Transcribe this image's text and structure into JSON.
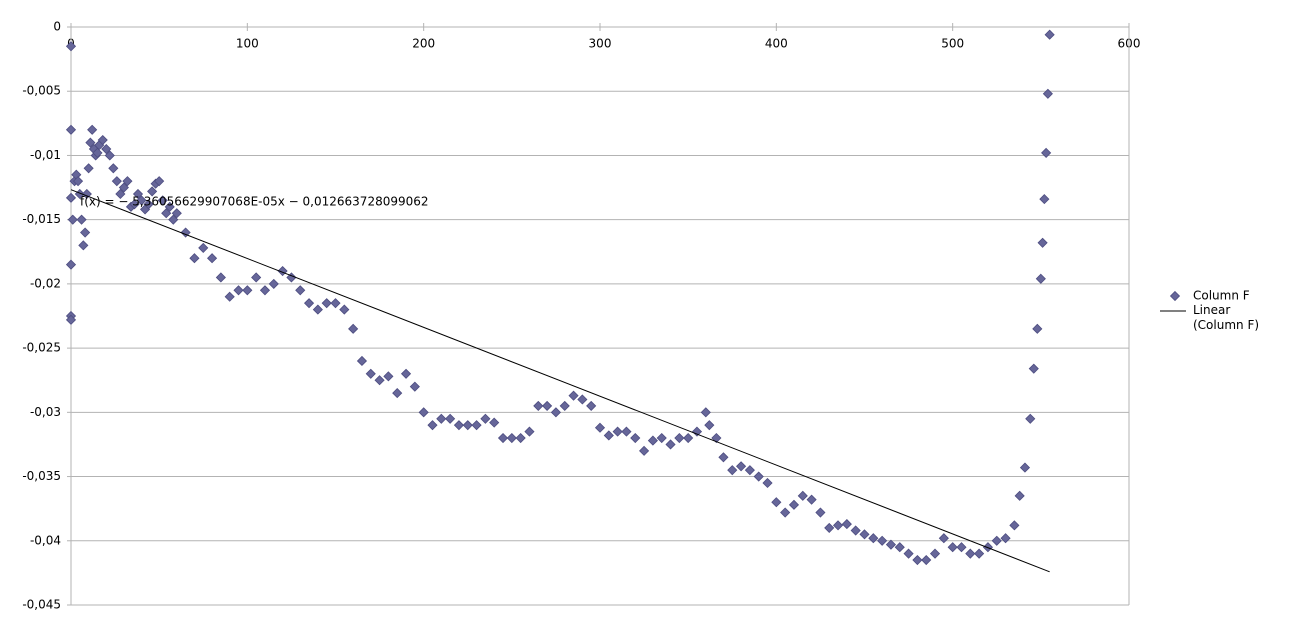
{
  "chart_data": {
    "type": "scatter",
    "annotation": "f(x) = − 5,36056629907068E-05x − 0,012663728099062",
    "series": [
      {
        "name": "Column F",
        "color": "#666699",
        "x": [
          0,
          0,
          0,
          0,
          0,
          0,
          1,
          2,
          3,
          4,
          5,
          6,
          7,
          8,
          9,
          10,
          11,
          12,
          13,
          14,
          15,
          16,
          18,
          20,
          22,
          24,
          26,
          28,
          30,
          32,
          34,
          36,
          38,
          40,
          42,
          44,
          46,
          48,
          50,
          52,
          54,
          56,
          58,
          60,
          65,
          70,
          75,
          80,
          85,
          90,
          95,
          100,
          105,
          110,
          115,
          120,
          125,
          130,
          135,
          140,
          145,
          150,
          155,
          160,
          165,
          170,
          175,
          180,
          185,
          190,
          195,
          200,
          205,
          210,
          215,
          220,
          225,
          230,
          235,
          240,
          245,
          250,
          255,
          260,
          265,
          270,
          275,
          280,
          285,
          290,
          295,
          300,
          305,
          310,
          315,
          320,
          325,
          330,
          335,
          340,
          345,
          350,
          355,
          360,
          362,
          366,
          370,
          375,
          380,
          385,
          390,
          395,
          400,
          405,
          410,
          415,
          420,
          425,
          430,
          435,
          440,
          445,
          450,
          455,
          460,
          465,
          470,
          475,
          480,
          485,
          490,
          495,
          500,
          505,
          510,
          515,
          520,
          525,
          530,
          535,
          538,
          541,
          544,
          546,
          548,
          550,
          551,
          552,
          553,
          554,
          555
        ],
        "values": [
          -0.0015,
          -0.008,
          -0.0133,
          -0.0185,
          -0.0225,
          -0.0228,
          -0.015,
          -0.012,
          -0.0115,
          -0.012,
          -0.013,
          -0.015,
          -0.017,
          -0.016,
          -0.013,
          -0.011,
          -0.009,
          -0.008,
          -0.0095,
          -0.01,
          -0.0098,
          -0.0092,
          -0.0088,
          -0.0095,
          -0.01,
          -0.011,
          -0.012,
          -0.013,
          -0.0125,
          -0.012,
          -0.014,
          -0.0138,
          -0.013,
          -0.0135,
          -0.0142,
          -0.0138,
          -0.0128,
          -0.0122,
          -0.012,
          -0.0135,
          -0.0145,
          -0.014,
          -0.015,
          -0.0145,
          -0.016,
          -0.018,
          -0.0172,
          -0.018,
          -0.0195,
          -0.021,
          -0.0205,
          -0.0205,
          -0.0195,
          -0.0205,
          -0.02,
          -0.019,
          -0.0195,
          -0.0205,
          -0.0215,
          -0.022,
          -0.0215,
          -0.0215,
          -0.022,
          -0.0235,
          -0.026,
          -0.027,
          -0.0275,
          -0.0272,
          -0.0285,
          -0.027,
          -0.028,
          -0.03,
          -0.031,
          -0.0305,
          -0.0305,
          -0.031,
          -0.031,
          -0.031,
          -0.0305,
          -0.0308,
          -0.032,
          -0.032,
          -0.032,
          -0.0315,
          -0.0295,
          -0.0295,
          -0.03,
          -0.0295,
          -0.0287,
          -0.029,
          -0.0295,
          -0.0312,
          -0.0318,
          -0.0315,
          -0.0315,
          -0.032,
          -0.033,
          -0.0322,
          -0.032,
          -0.0325,
          -0.032,
          -0.032,
          -0.0315,
          -0.03,
          -0.031,
          -0.032,
          -0.0335,
          -0.0345,
          -0.0342,
          -0.0345,
          -0.035,
          -0.0355,
          -0.037,
          -0.0378,
          -0.0372,
          -0.0365,
          -0.0368,
          -0.0378,
          -0.039,
          -0.0388,
          -0.0387,
          -0.0392,
          -0.0395,
          -0.0398,
          -0.04,
          -0.0403,
          -0.0405,
          -0.041,
          -0.0415,
          -0.0415,
          -0.041,
          -0.0398,
          -0.0405,
          -0.0405,
          -0.041,
          -0.041,
          -0.0405,
          -0.04,
          -0.0398,
          -0.0388,
          -0.0365,
          -0.0343,
          -0.0305,
          -0.0266,
          -0.0235,
          -0.0196,
          -0.0168,
          -0.0134,
          -0.0098,
          -0.0052,
          -0.0006
        ]
      },
      {
        "name": "Linear (Column F)",
        "color": "#000000",
        "type": "line",
        "x": [
          0,
          555
        ],
        "values": [
          -0.012664,
          -0.042415
        ]
      }
    ],
    "xlim": [
      0,
      600
    ],
    "xticks": [
      0,
      100,
      200,
      300,
      400,
      500,
      600
    ],
    "ylim": [
      -0.045,
      0
    ],
    "yticks": [
      0,
      {
        "value": -0.005,
        "label": "-0,005"
      },
      {
        "value": -0.01,
        "label": "-0,01"
      },
      {
        "value": -0.015,
        "label": "-0,015"
      },
      {
        "value": -0.02,
        "label": "-0,02"
      },
      {
        "value": -0.025,
        "label": "-0,025"
      },
      {
        "value": -0.03,
        "label": "-0,03"
      },
      {
        "value": -0.035,
        "label": "-0,035"
      },
      {
        "value": -0.04,
        "label": "-0,04"
      },
      {
        "value": -0.045,
        "label": "-0,045"
      }
    ],
    "grid": true,
    "legend": "right"
  }
}
